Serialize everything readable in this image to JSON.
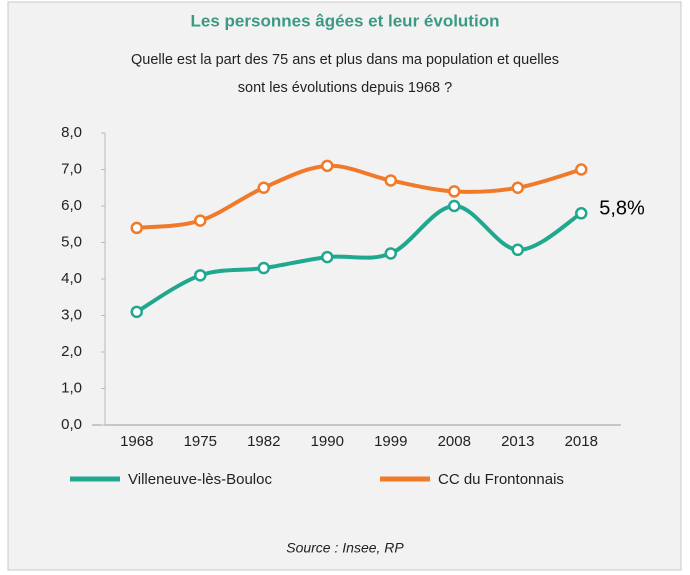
{
  "chart_data": {
    "type": "line",
    "title": "Les personnes âgées et leur évolution",
    "subtitle": [
      "Quelle est la part des 75 ans et plus dans ma population et quelles",
      "sont les évolutions depuis 1968 ?"
    ],
    "source": "Source : Insee, RP",
    "categories": [
      "1968",
      "1975",
      "1982",
      "1990",
      "1999",
      "2008",
      "2013",
      "2018"
    ],
    "series": [
      {
        "name": "Villeneuve-lès-Bouloc",
        "color": "#1fa88f",
        "values": [
          3.1,
          4.1,
          4.3,
          4.6,
          4.7,
          6.0,
          4.8,
          5.8
        ],
        "value_labels": [
          null,
          null,
          null,
          null,
          null,
          null,
          null,
          "5,8%"
        ]
      },
      {
        "name": "CC du Frontonnais",
        "color": "#f07a2a",
        "values": [
          5.4,
          5.6,
          6.5,
          7.1,
          6.7,
          6.4,
          6.5,
          7.0
        ]
      }
    ],
    "ylim": [
      0,
      8
    ],
    "yticks": [
      {
        "value": 0,
        "label": "0,0"
      },
      {
        "value": 1,
        "label": "1,0"
      },
      {
        "value": 2,
        "label": "2,0"
      },
      {
        "value": 3,
        "label": "3,0"
      },
      {
        "value": 4,
        "label": "4,0"
      },
      {
        "value": 5,
        "label": "5,0"
      },
      {
        "value": 6,
        "label": "6,0"
      },
      {
        "value": 7,
        "label": "7,0"
      },
      {
        "value": 8,
        "label": "8,0"
      }
    ],
    "grid": false,
    "legend": "bottom"
  }
}
